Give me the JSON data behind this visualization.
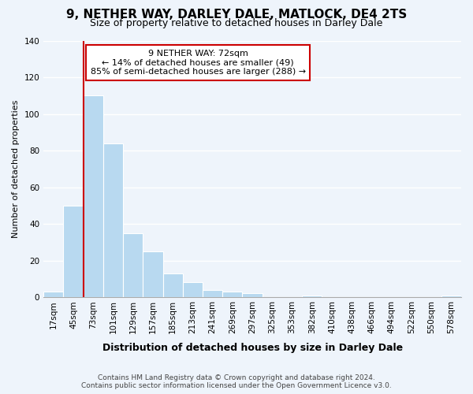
{
  "title": "9, NETHER WAY, DARLEY DALE, MATLOCK, DE4 2TS",
  "subtitle": "Size of property relative to detached houses in Darley Dale",
  "xlabel": "Distribution of detached houses by size in Darley Dale",
  "ylabel": "Number of detached properties",
  "bin_labels": [
    "17sqm",
    "45sqm",
    "73sqm",
    "101sqm",
    "129sqm",
    "157sqm",
    "185sqm",
    "213sqm",
    "241sqm",
    "269sqm",
    "297sqm",
    "325sqm",
    "353sqm",
    "382sqm",
    "410sqm",
    "438sqm",
    "466sqm",
    "494sqm",
    "522sqm",
    "550sqm",
    "578sqm"
  ],
  "bar_values": [
    3,
    50,
    110,
    84,
    35,
    25,
    13,
    8,
    4,
    3,
    2,
    0,
    0,
    1,
    0,
    0,
    0,
    0,
    0,
    0,
    1
  ],
  "bar_color": "#b8d9f0",
  "highlight_line_color": "#cc0000",
  "highlight_bin_index": 2,
  "annotation_title": "9 NETHER WAY: 72sqm",
  "annotation_line1": "← 14% of detached houses are smaller (49)",
  "annotation_line2": "85% of semi-detached houses are larger (288) →",
  "annotation_box_edgecolor": "#cc0000",
  "ylim": [
    0,
    140
  ],
  "yticks": [
    0,
    20,
    40,
    60,
    80,
    100,
    120,
    140
  ],
  "footer_line1": "Contains HM Land Registry data © Crown copyright and database right 2024.",
  "footer_line2": "Contains public sector information licensed under the Open Government Licence v3.0.",
  "background_color": "#eef4fb",
  "grid_color": "#ffffff",
  "title_fontsize": 11,
  "subtitle_fontsize": 9,
  "xlabel_fontsize": 9,
  "ylabel_fontsize": 8,
  "tick_fontsize": 7.5,
  "footer_fontsize": 6.5
}
